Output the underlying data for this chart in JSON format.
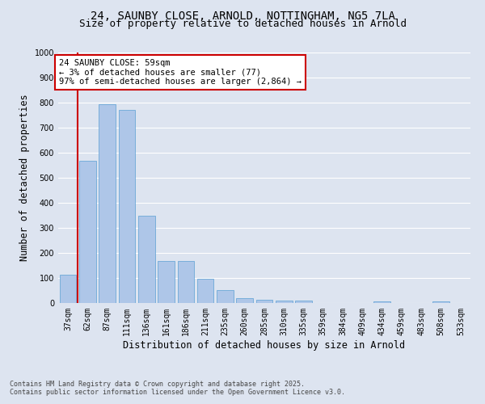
{
  "title_line1": "24, SAUNBY CLOSE, ARNOLD, NOTTINGHAM, NG5 7LA",
  "title_line2": "Size of property relative to detached houses in Arnold",
  "xlabel": "Distribution of detached houses by size in Arnold",
  "ylabel": "Number of detached properties",
  "categories": [
    "37sqm",
    "62sqm",
    "87sqm",
    "111sqm",
    "136sqm",
    "161sqm",
    "186sqm",
    "211sqm",
    "235sqm",
    "260sqm",
    "285sqm",
    "310sqm",
    "335sqm",
    "359sqm",
    "384sqm",
    "409sqm",
    "434sqm",
    "459sqm",
    "483sqm",
    "508sqm",
    "533sqm"
  ],
  "values": [
    112,
    568,
    793,
    770,
    350,
    168,
    168,
    97,
    52,
    18,
    13,
    10,
    10,
    1,
    0,
    0,
    7,
    0,
    0,
    7,
    0
  ],
  "bar_color": "#aec6e8",
  "bar_edge_color": "#5a9fd4",
  "annotation_text": "24 SAUNBY CLOSE: 59sqm\n← 3% of detached houses are smaller (77)\n97% of semi-detached houses are larger (2,864) →",
  "annotation_box_color": "#ffffff",
  "annotation_box_edge": "#cc0000",
  "ylim": [
    0,
    1000
  ],
  "yticks": [
    0,
    100,
    200,
    300,
    400,
    500,
    600,
    700,
    800,
    900,
    1000
  ],
  "bg_color": "#dde4f0",
  "plot_bg_color": "#dde4f0",
  "grid_color": "#ffffff",
  "footer_line1": "Contains HM Land Registry data © Crown copyright and database right 2025.",
  "footer_line2": "Contains public sector information licensed under the Open Government Licence v3.0.",
  "red_line_color": "#cc0000",
  "title_fontsize": 10,
  "subtitle_fontsize": 9,
  "tick_fontsize": 7,
  "axis_label_fontsize": 8.5,
  "footer_fontsize": 6
}
